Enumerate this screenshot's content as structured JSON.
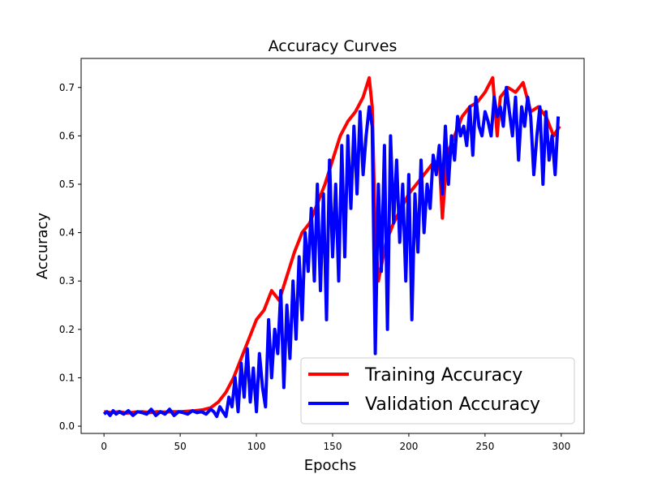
{
  "colors": {
    "training": "#ff0000",
    "validation": "#0000ff",
    "background": "#ffffff",
    "axis": "#000000"
  },
  "chart_data": {
    "type": "line",
    "title": "Accuracy Curves",
    "xlabel": "Epochs",
    "ylabel": "Accuracy",
    "xlim": [
      -15,
      315
    ],
    "ylim": [
      -0.015,
      0.76
    ],
    "xticks": [
      0,
      50,
      100,
      150,
      200,
      250,
      300
    ],
    "xtick_labels": [
      "0",
      "50",
      "100",
      "150",
      "200",
      "250",
      "300"
    ],
    "yticks": [
      0.0,
      0.1,
      0.2,
      0.3,
      0.4,
      0.5,
      0.6,
      0.7
    ],
    "ytick_labels": [
      "0.0",
      "0.1",
      "0.2",
      "0.3",
      "0.4",
      "0.5",
      "0.6",
      "0.7"
    ],
    "grid": false,
    "legend": "lower-right",
    "series": [
      {
        "name": "Training Accuracy",
        "color": "#ff0000",
        "x": [
          0,
          5,
          10,
          15,
          20,
          25,
          30,
          35,
          40,
          45,
          50,
          55,
          60,
          65,
          70,
          75,
          80,
          85,
          90,
          95,
          100,
          105,
          110,
          115,
          120,
          125,
          130,
          135,
          140,
          145,
          150,
          155,
          160,
          165,
          170,
          174,
          176,
          178,
          180,
          185,
          190,
          195,
          200,
          205,
          210,
          215,
          220,
          222,
          225,
          230,
          235,
          240,
          245,
          250,
          255,
          258,
          260,
          265,
          270,
          275,
          280,
          285,
          290,
          295,
          299
        ],
        "values": [
          0.03,
          0.028,
          0.03,
          0.027,
          0.029,
          0.03,
          0.028,
          0.03,
          0.029,
          0.03,
          0.03,
          0.031,
          0.032,
          0.034,
          0.038,
          0.05,
          0.07,
          0.1,
          0.14,
          0.18,
          0.22,
          0.24,
          0.28,
          0.26,
          0.31,
          0.36,
          0.4,
          0.42,
          0.46,
          0.5,
          0.55,
          0.6,
          0.63,
          0.65,
          0.68,
          0.72,
          0.66,
          0.4,
          0.3,
          0.38,
          0.42,
          0.45,
          0.48,
          0.5,
          0.52,
          0.54,
          0.55,
          0.43,
          0.56,
          0.6,
          0.64,
          0.66,
          0.67,
          0.69,
          0.72,
          0.6,
          0.68,
          0.7,
          0.69,
          0.71,
          0.65,
          0.66,
          0.64,
          0.6,
          0.62
        ]
      },
      {
        "name": "Validation Accuracy",
        "color": "#0000ff",
        "x": [
          0,
          2,
          4,
          6,
          8,
          10,
          13,
          16,
          19,
          22,
          25,
          28,
          31,
          34,
          37,
          40,
          43,
          46,
          49,
          52,
          55,
          58,
          61,
          64,
          67,
          70,
          72,
          74,
          76,
          78,
          80,
          82,
          84,
          86,
          88,
          90,
          92,
          94,
          96,
          98,
          100,
          102,
          104,
          106,
          108,
          110,
          112,
          114,
          116,
          118,
          120,
          122,
          124,
          126,
          128,
          130,
          132,
          134,
          136,
          138,
          140,
          142,
          144,
          146,
          148,
          150,
          152,
          154,
          156,
          158,
          160,
          162,
          164,
          166,
          168,
          170,
          172,
          174,
          176,
          178,
          180,
          182,
          184,
          186,
          188,
          190,
          192,
          194,
          196,
          198,
          200,
          202,
          204,
          206,
          208,
          210,
          212,
          214,
          216,
          218,
          220,
          222,
          224,
          226,
          228,
          230,
          232,
          234,
          236,
          238,
          240,
          242,
          244,
          246,
          248,
          250,
          252,
          254,
          256,
          258,
          260,
          262,
          264,
          266,
          268,
          270,
          272,
          274,
          276,
          278,
          280,
          282,
          284,
          286,
          288,
          290,
          292,
          294,
          296,
          298
        ],
        "values": [
          0.025,
          0.03,
          0.022,
          0.032,
          0.025,
          0.03,
          0.025,
          0.032,
          0.022,
          0.03,
          0.028,
          0.025,
          0.035,
          0.022,
          0.03,
          0.025,
          0.035,
          0.022,
          0.03,
          0.028,
          0.025,
          0.032,
          0.028,
          0.03,
          0.025,
          0.035,
          0.03,
          0.02,
          0.04,
          0.03,
          0.02,
          0.06,
          0.04,
          0.1,
          0.03,
          0.13,
          0.06,
          0.16,
          0.05,
          0.12,
          0.03,
          0.15,
          0.08,
          0.04,
          0.22,
          0.1,
          0.2,
          0.15,
          0.28,
          0.08,
          0.25,
          0.14,
          0.3,
          0.18,
          0.35,
          0.22,
          0.4,
          0.32,
          0.45,
          0.3,
          0.5,
          0.28,
          0.48,
          0.22,
          0.55,
          0.35,
          0.5,
          0.3,
          0.58,
          0.35,
          0.6,
          0.45,
          0.62,
          0.48,
          0.65,
          0.52,
          0.6,
          0.66,
          0.62,
          0.15,
          0.5,
          0.32,
          0.58,
          0.2,
          0.6,
          0.42,
          0.55,
          0.38,
          0.5,
          0.3,
          0.52,
          0.22,
          0.48,
          0.36,
          0.55,
          0.4,
          0.5,
          0.45,
          0.56,
          0.52,
          0.58,
          0.48,
          0.62,
          0.5,
          0.6,
          0.55,
          0.64,
          0.6,
          0.62,
          0.58,
          0.66,
          0.56,
          0.68,
          0.62,
          0.6,
          0.65,
          0.63,
          0.6,
          0.68,
          0.64,
          0.66,
          0.62,
          0.7,
          0.65,
          0.6,
          0.68,
          0.55,
          0.66,
          0.62,
          0.68,
          0.64,
          0.52,
          0.6,
          0.66,
          0.5,
          0.65,
          0.55,
          0.6,
          0.52,
          0.64
        ]
      }
    ]
  }
}
